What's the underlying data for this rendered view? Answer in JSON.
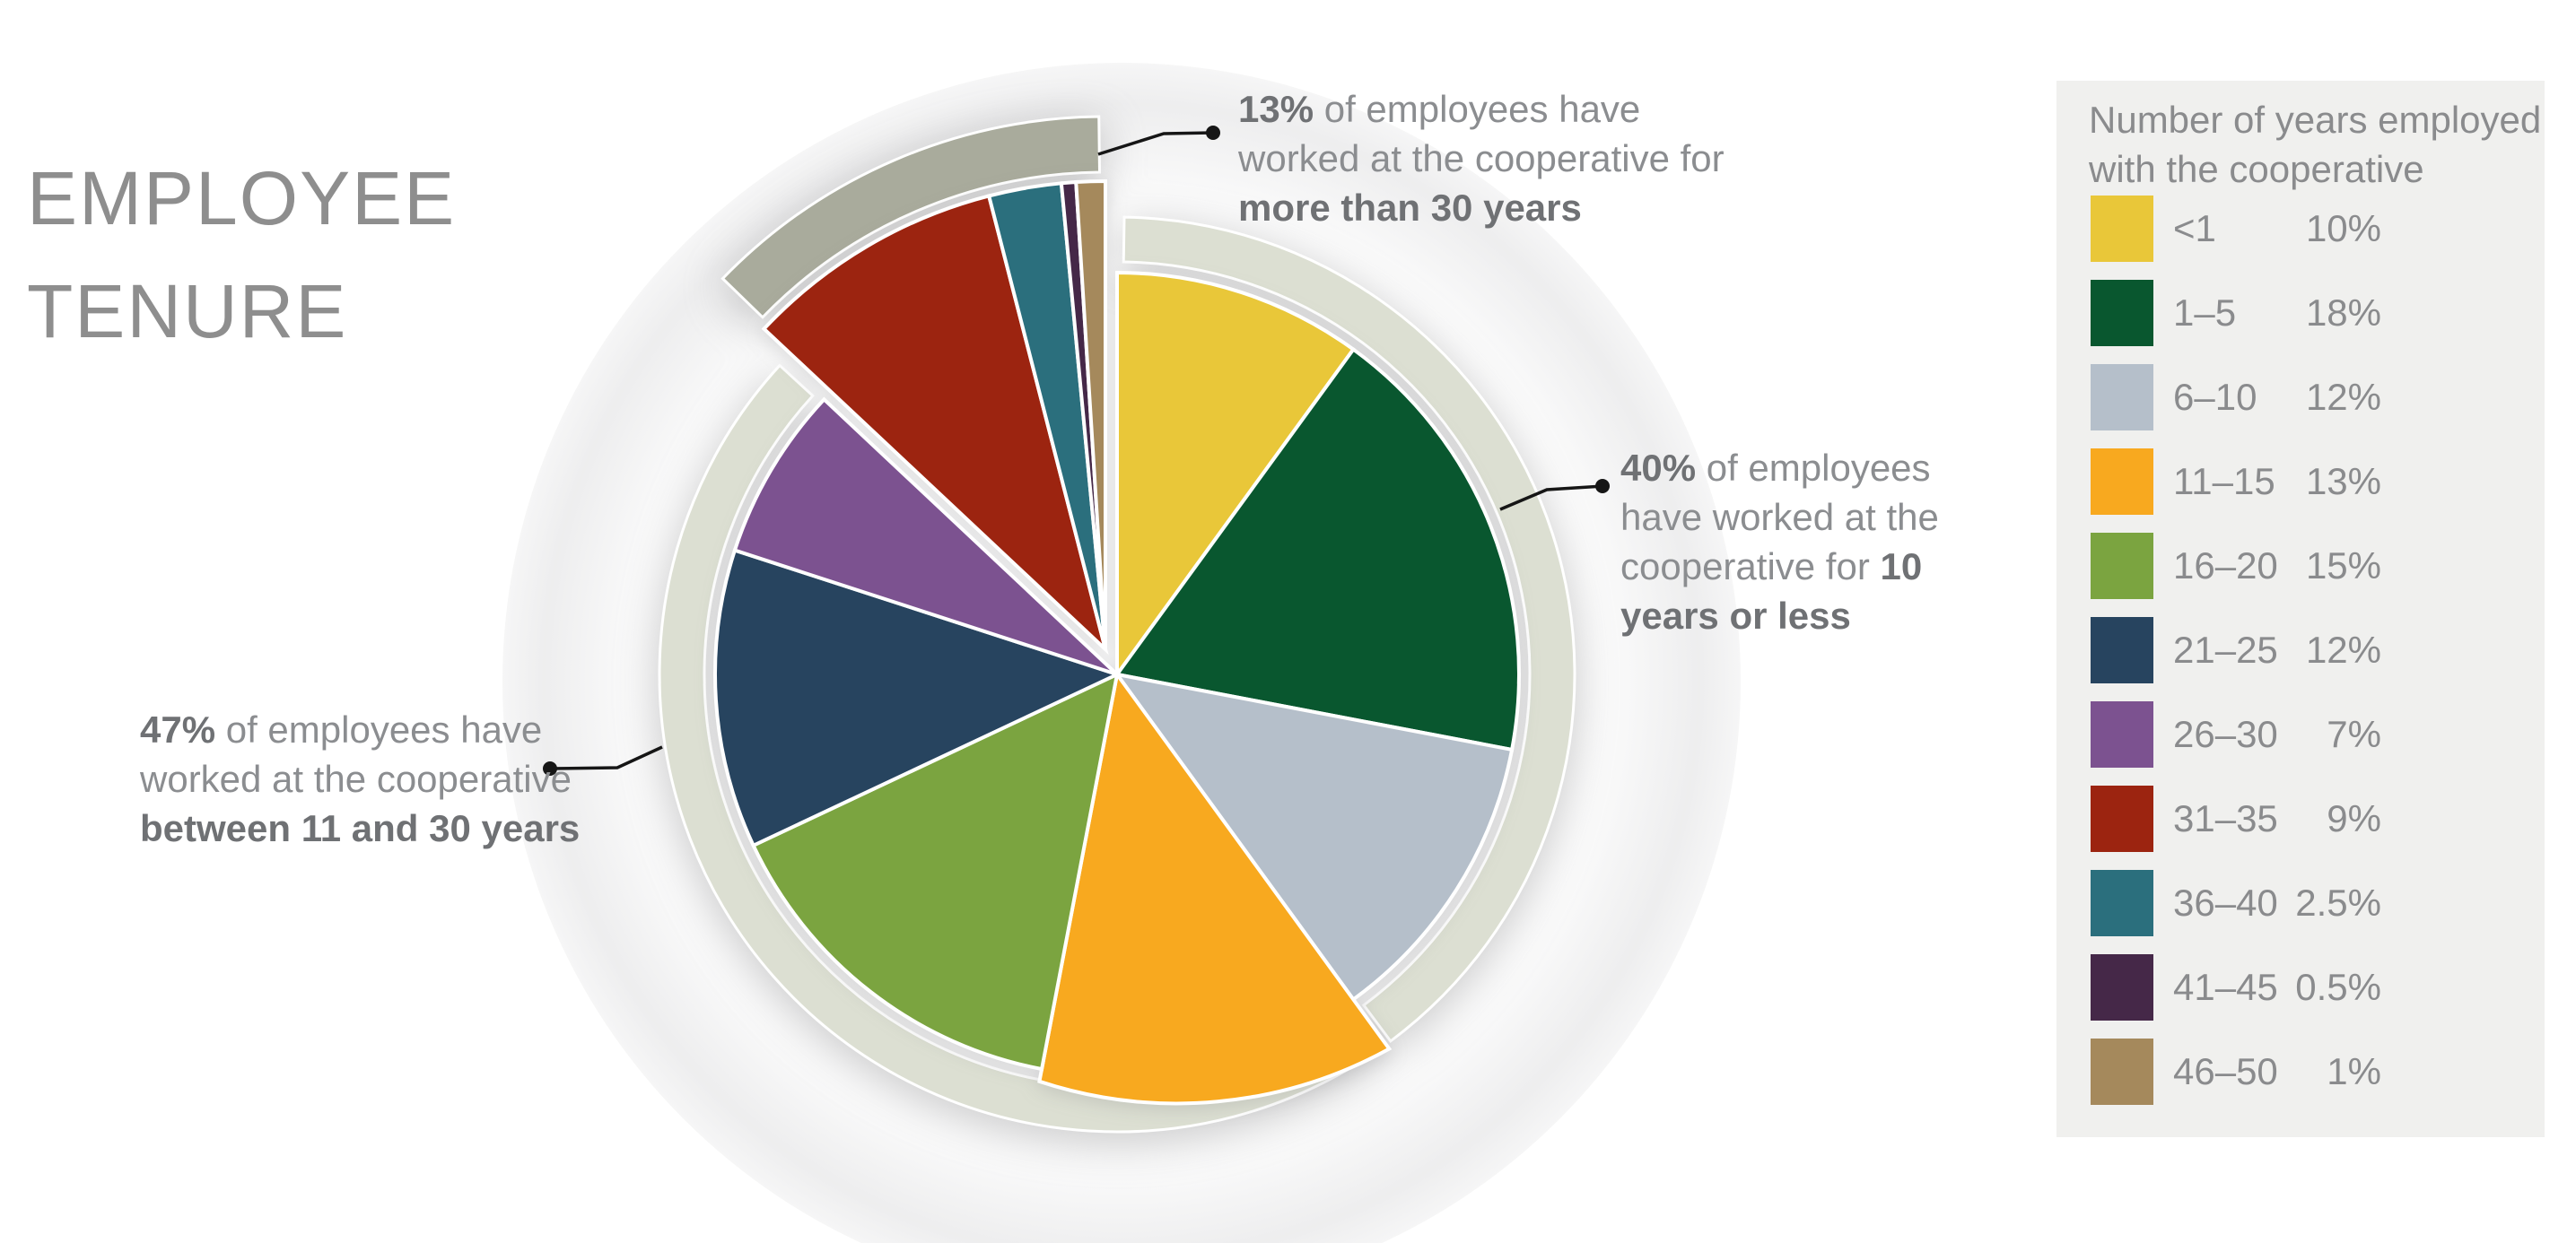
{
  "title": {
    "line1": "EMPLOYEE",
    "line2": "TENURE"
  },
  "chart_data": {
    "type": "pie",
    "title": "EMPLOYEE TENURE",
    "unit": "percent of employees",
    "start_angle_deg": 0,
    "direction": "clockwise",
    "slices": [
      {
        "label": "<1",
        "value": 10,
        "color": "#e9c739"
      },
      {
        "label": "1–5",
        "value": 18,
        "color": "#09572f"
      },
      {
        "label": "6–10",
        "value": 12,
        "color": "#b5bfca"
      },
      {
        "label": "11–15",
        "value": 13,
        "color": "#f8a91f"
      },
      {
        "label": "16–20",
        "value": 15,
        "color": "#7ba440"
      },
      {
        "label": "21–25",
        "value": 12,
        "color": "#27445f"
      },
      {
        "label": "26–30",
        "value": 7,
        "color": "#7c5290"
      },
      {
        "label": "31–35",
        "value": 9,
        "color": "#9c2410"
      },
      {
        "label": "36–40",
        "value": 2.5,
        "color": "#2b6f7d"
      },
      {
        "label": "41–45",
        "value": 0.5,
        "color": "#452848"
      },
      {
        "label": "46–50",
        "value": 1,
        "color": "#a5895c"
      }
    ],
    "group_arcs": [
      {
        "label": "10 years or less",
        "value": 40,
        "style": "light",
        "exploded": false
      },
      {
        "label": "between 11 and 30 years",
        "value": 47,
        "style": "light",
        "exploded": false
      },
      {
        "label": "more than 30 years",
        "value": 13,
        "style": "dark",
        "exploded": true
      }
    ],
    "ring_colors": {
      "light": "#dcdfd2",
      "dark": "#a9ab9c"
    },
    "legend_title": "Number of years employed with the cooperative"
  },
  "annotations": {
    "a13": {
      "lead": "13%",
      "mid": " of employees have worked at the cooperative for ",
      "tail": "more than 30 years"
    },
    "a40": {
      "lead": "40%",
      "mid": " of employees have worked at the cooperative for ",
      "tail": "10 years or less"
    },
    "a47": {
      "lead": "47%",
      "mid": " of employees have worked at the cooperative ",
      "tail": "between 11 and 30 years"
    }
  },
  "legend": {
    "title_line1": "Number of years employed",
    "title_line2": "with the cooperative",
    "items": [
      {
        "label": "<1",
        "value_text": "10%",
        "color": "#e9c739"
      },
      {
        "label": "1–5",
        "value_text": "18%",
        "color": "#09572f"
      },
      {
        "label": "6–10",
        "value_text": "12%",
        "color": "#b5bfca"
      },
      {
        "label": "11–15",
        "value_text": "13%",
        "color": "#f8a91f"
      },
      {
        "label": "16–20",
        "value_text": "15%",
        "color": "#7ba440"
      },
      {
        "label": "21–25",
        "value_text": "12%",
        "color": "#27445f"
      },
      {
        "label": "26–30",
        "value_text": "7%",
        "color": "#7c5290"
      },
      {
        "label": "31–35",
        "value_text": "9%",
        "color": "#9c2410"
      },
      {
        "label": "36–40",
        "value_text": "2.5%",
        "color": "#2b6f7d"
      },
      {
        "label": "41–45",
        "value_text": "0.5%",
        "color": "#452848"
      },
      {
        "label": "46–50",
        "value_text": "1%",
        "color": "#a5895c"
      }
    ]
  }
}
